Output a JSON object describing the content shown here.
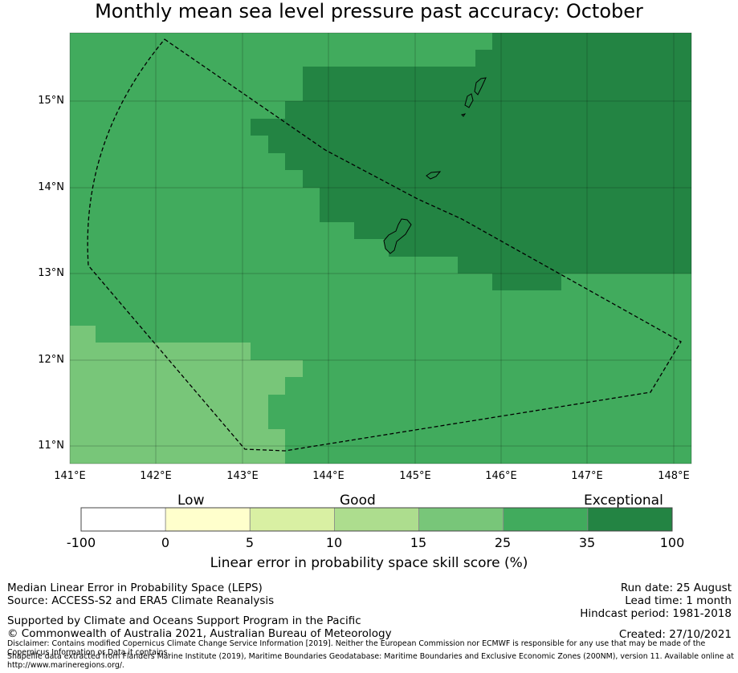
{
  "title": "Monthly mean sea level pressure past accuracy: October",
  "map": {
    "lon_ticks": [
      "141°E",
      "142°E",
      "143°E",
      "144°E",
      "145°E",
      "146°E",
      "147°E",
      "148°E"
    ],
    "lat_ticks": [
      "15°N",
      "14°N",
      "13°N",
      "12°N",
      "11°N"
    ],
    "extent": {
      "lon_min": 141.0,
      "lon_max": 148.2,
      "lat_min": 10.8,
      "lat_max": 15.8
    },
    "region_outline": "dashed",
    "islands": [
      "Guam",
      "Rota",
      "Tinian",
      "Saipan"
    ]
  },
  "legend": {
    "categories": [
      "Low",
      "Good",
      "Exceptional"
    ],
    "ticks": [
      "-100",
      "0",
      "5",
      "10",
      "15",
      "25",
      "35",
      "100"
    ],
    "colors": [
      "#ffffff",
      "#ffffcc",
      "#d9f0a3",
      "#addd8e",
      "#78c679",
      "#41ab5d",
      "#238443"
    ],
    "label": "Linear error in probability space skill score (%)"
  },
  "footer": {
    "line1": "Median Linear Error in Probability Space (LEPS)",
    "line2": "Source: ACCESS-S2 and ERA5 Climate Reanalysis",
    "support": "Supported by Climate and Oceans Support Program in the Pacific",
    "copyright": "© Commonwealth of Australia 2021, Australian Bureau of Meteorology",
    "disclaimer": "Disclaimer: Contains modified Copernicus Climate Change Service Information [2019]. Neither the European Commission nor ECMWF is responsible for any use that may be made of the Copernicus Information or Data it contains.",
    "shapefile": "Shapefile data extracted from Flanders Marine Institute (2019), Maritime Boundaries Geodatabase: Maritime Boundaries and Exclusive Economic Zones (200NM), version 11. Available online at http://www.marineregions.org/.",
    "run_date": "Run date: 25 August",
    "lead_time": "Lead time: 1 month",
    "hindcast": "Hindcast period: 1981-2018",
    "created": "Created: 27/10/2021"
  }
}
